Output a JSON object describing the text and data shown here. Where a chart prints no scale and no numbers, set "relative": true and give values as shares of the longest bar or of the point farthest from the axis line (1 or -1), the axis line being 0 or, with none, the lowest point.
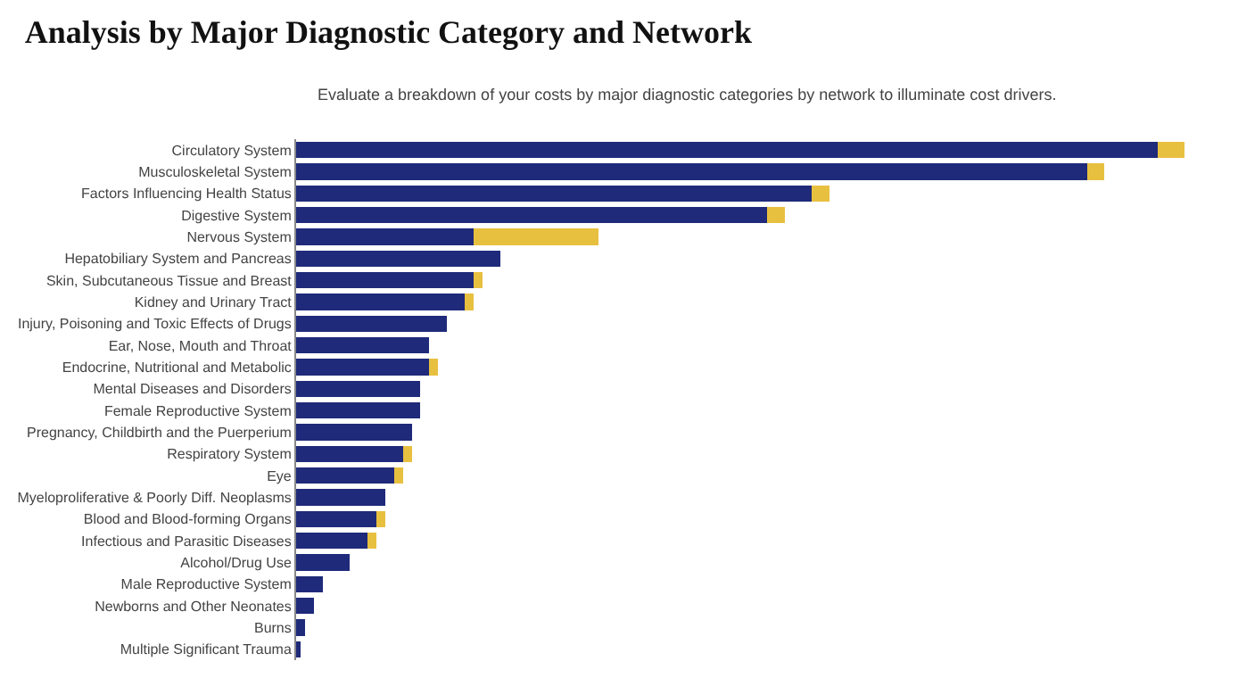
{
  "chart_data": {
    "type": "bar",
    "orientation": "horizontal",
    "stacked": true,
    "relative": true,
    "title": "Analysis by Major Diagnostic Category and Network",
    "subtitle": "Evaluate a breakdown of your costs by major diagnostic categories by network to illuminate cost drivers.",
    "categories": [
      "Circulatory System",
      "Musculoskeletal System",
      "Factors Influencing Health Status",
      "Digestive System",
      "Nervous System",
      "Hepatobiliary System and Pancreas",
      "Skin, Subcutaneous Tissue and Breast",
      "Kidney and Urinary Tract",
      "Injury, Poisoning and Toxic Effects of Drugs",
      "Ear, Nose, Mouth and Throat",
      "Endocrine, Nutritional and Metabolic",
      "Mental Diseases and Disorders",
      "Female Reproductive System",
      "Pregnancy, Childbirth and the Puerperium",
      "Respiratory System",
      "Eye",
      "Myeloproliferative & Poorly Diff. Neoplasms",
      "Blood and Blood-forming Organs",
      "Infectious and Parasitic Diseases",
      "Alcohol/Drug Use",
      "Male Reproductive System",
      "Newborns and Other Neonates",
      "Burns",
      "Multiple Significant Trauma"
    ],
    "series": [
      {
        "color": "#1f2a7a",
        "values": [
          0.97,
          0.89,
          0.58,
          0.53,
          0.2,
          0.23,
          0.2,
          0.19,
          0.17,
          0.15,
          0.15,
          0.14,
          0.14,
          0.13,
          0.12,
          0.11,
          0.1,
          0.09,
          0.08,
          0.06,
          0.03,
          0.02,
          0.01,
          0.005
        ]
      },
      {
        "color": "#e8c040",
        "values": [
          0.03,
          0.02,
          0.02,
          0.02,
          0.14,
          0,
          0.01,
          0.01,
          0,
          0,
          0.01,
          0,
          0,
          0,
          0.01,
          0.01,
          0,
          0.01,
          0.01,
          0,
          0,
          0,
          0,
          0
        ]
      }
    ]
  }
}
